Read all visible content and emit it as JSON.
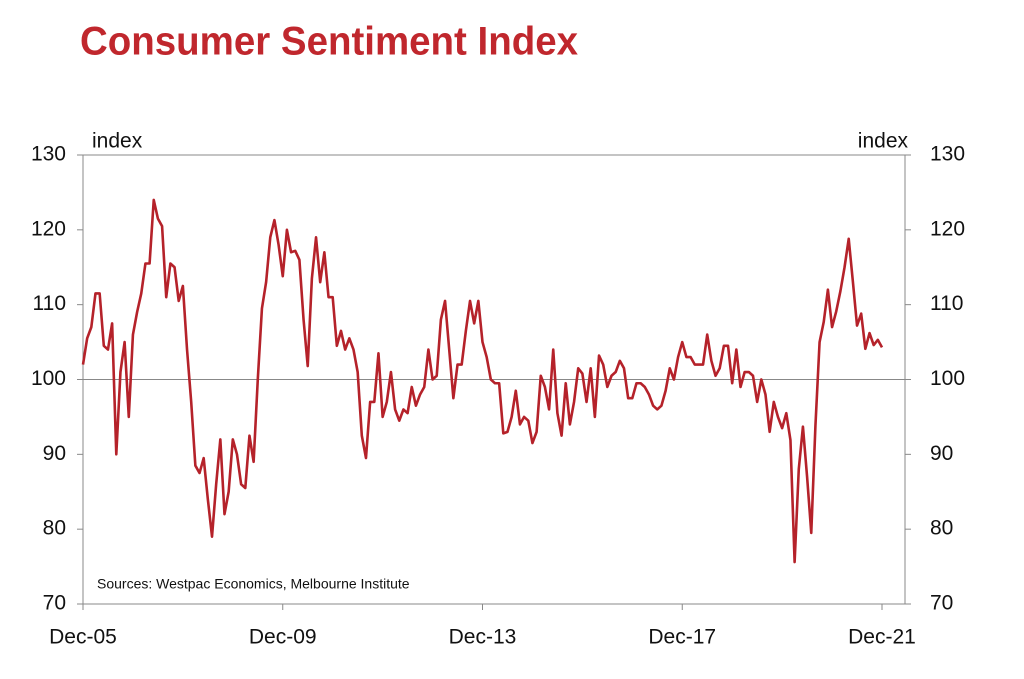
{
  "chart_data": {
    "type": "line",
    "title": "Consumer Sentiment Index",
    "y_label": "index",
    "y2_label": "index",
    "annotation": "Sources: Westpac Economics, Melbourne Institute",
    "categories": [
      "Dec-05",
      null,
      null,
      null,
      null,
      null,
      null,
      null,
      null,
      null,
      null,
      null,
      null,
      null,
      null,
      null,
      null,
      null,
      null,
      null,
      null,
      null,
      null,
      null,
      null,
      null,
      null,
      null,
      null,
      null,
      null,
      null,
      null,
      null,
      null,
      null,
      null,
      null,
      null,
      null,
      null,
      null,
      null,
      null,
      null,
      null,
      null,
      null,
      "Dec-09",
      null,
      null,
      null,
      null,
      null,
      null,
      null,
      null,
      null,
      null,
      null,
      null,
      null,
      null,
      null,
      null,
      null,
      null,
      null,
      null,
      null,
      null,
      null,
      null,
      null,
      null,
      null,
      null,
      null,
      null,
      null,
      null,
      null,
      null,
      null,
      null,
      null,
      null,
      null,
      null,
      null,
      null,
      null,
      null,
      null,
      null,
      null,
      "Dec-13",
      null,
      null,
      null,
      null,
      null,
      null,
      null,
      null,
      null,
      null,
      null,
      null,
      null,
      null,
      null,
      null,
      null,
      null,
      null,
      null,
      null,
      null,
      null,
      null,
      null,
      null,
      null,
      null,
      null,
      null,
      null,
      null,
      null,
      null,
      null,
      null,
      null,
      null,
      null,
      null,
      null,
      null,
      null,
      null,
      null,
      null,
      null,
      "Dec-17",
      null,
      null,
      null,
      null,
      null,
      null,
      null,
      null,
      null,
      null,
      null,
      null,
      null,
      null,
      null,
      null,
      null,
      null,
      null,
      null,
      null,
      null,
      null,
      null,
      null,
      null,
      null,
      null,
      null,
      null,
      null,
      null,
      null,
      null,
      null,
      null,
      null,
      null,
      null,
      null,
      null,
      null,
      null,
      null,
      null,
      null,
      null,
      "Dec-21"
    ],
    "series": [
      {
        "name": "Consumer Sentiment Index",
        "color": "#b5222a",
        "values": [
          102,
          105.5,
          107,
          111.5,
          111.5,
          104.5,
          104,
          107.5,
          90,
          101,
          105,
          95,
          106,
          109,
          111.5,
          115.5,
          115.5,
          124,
          121.5,
          120.5,
          111,
          115.5,
          115,
          110.5,
          112.5,
          104,
          97,
          88.5,
          87.5,
          89.5,
          84,
          79,
          86,
          92,
          82,
          85,
          92,
          90,
          86,
          85.5,
          92.5,
          89,
          100,
          109.5,
          113,
          119,
          121.3,
          118,
          113.8,
          120,
          117,
          117.2,
          116,
          108,
          101.8,
          113.5,
          119,
          113,
          117,
          111,
          111,
          104.5,
          106.5,
          104,
          105.5,
          104,
          101,
          92.5,
          89.5,
          97,
          97,
          103.5,
          95,
          97,
          101,
          96,
          94.5,
          96,
          95.5,
          99,
          96.5,
          98,
          99,
          104,
          100,
          100.5,
          108,
          110.5,
          104,
          97.5,
          102,
          102,
          106.5,
          110.5,
          107.5,
          110.5,
          105,
          103,
          100,
          99.5,
          99.5,
          92.8,
          93,
          95,
          98.5,
          94,
          95,
          94.5,
          91.5,
          93,
          100.5,
          99,
          96,
          104,
          95.5,
          92.5,
          99.5,
          94,
          97,
          101.5,
          100.8,
          97,
          101.5,
          95,
          103.2,
          102,
          99,
          100.5,
          101,
          102.5,
          101.5,
          97.5,
          97.5,
          99.5,
          99.5,
          99,
          98,
          96.5,
          96,
          96.5,
          98.5,
          101.5,
          100,
          103,
          105,
          103,
          103,
          102,
          102,
          102,
          106,
          102.5,
          100.5,
          101.5,
          104.5,
          104.5,
          99.5,
          104,
          99,
          101,
          101,
          100.5,
          97,
          100,
          98,
          93,
          97,
          95,
          93.5,
          95.5,
          91.9,
          75.6,
          88,
          93.7,
          87,
          79.5,
          93.8,
          105,
          107.7,
          112,
          107,
          109.1,
          111.8,
          115,
          118.8,
          113.1,
          107.2,
          108.8,
          104.1,
          106.2,
          104.6,
          105.3,
          104.3
        ]
      }
    ],
    "ylim": [
      70,
      130
    ],
    "yticks": [
      70,
      80,
      90,
      100,
      110,
      120,
      130
    ],
    "y2lim": [
      70,
      130
    ],
    "y2ticks": [
      70,
      80,
      90,
      100,
      110,
      120,
      130
    ],
    "reference_line": 100
  }
}
